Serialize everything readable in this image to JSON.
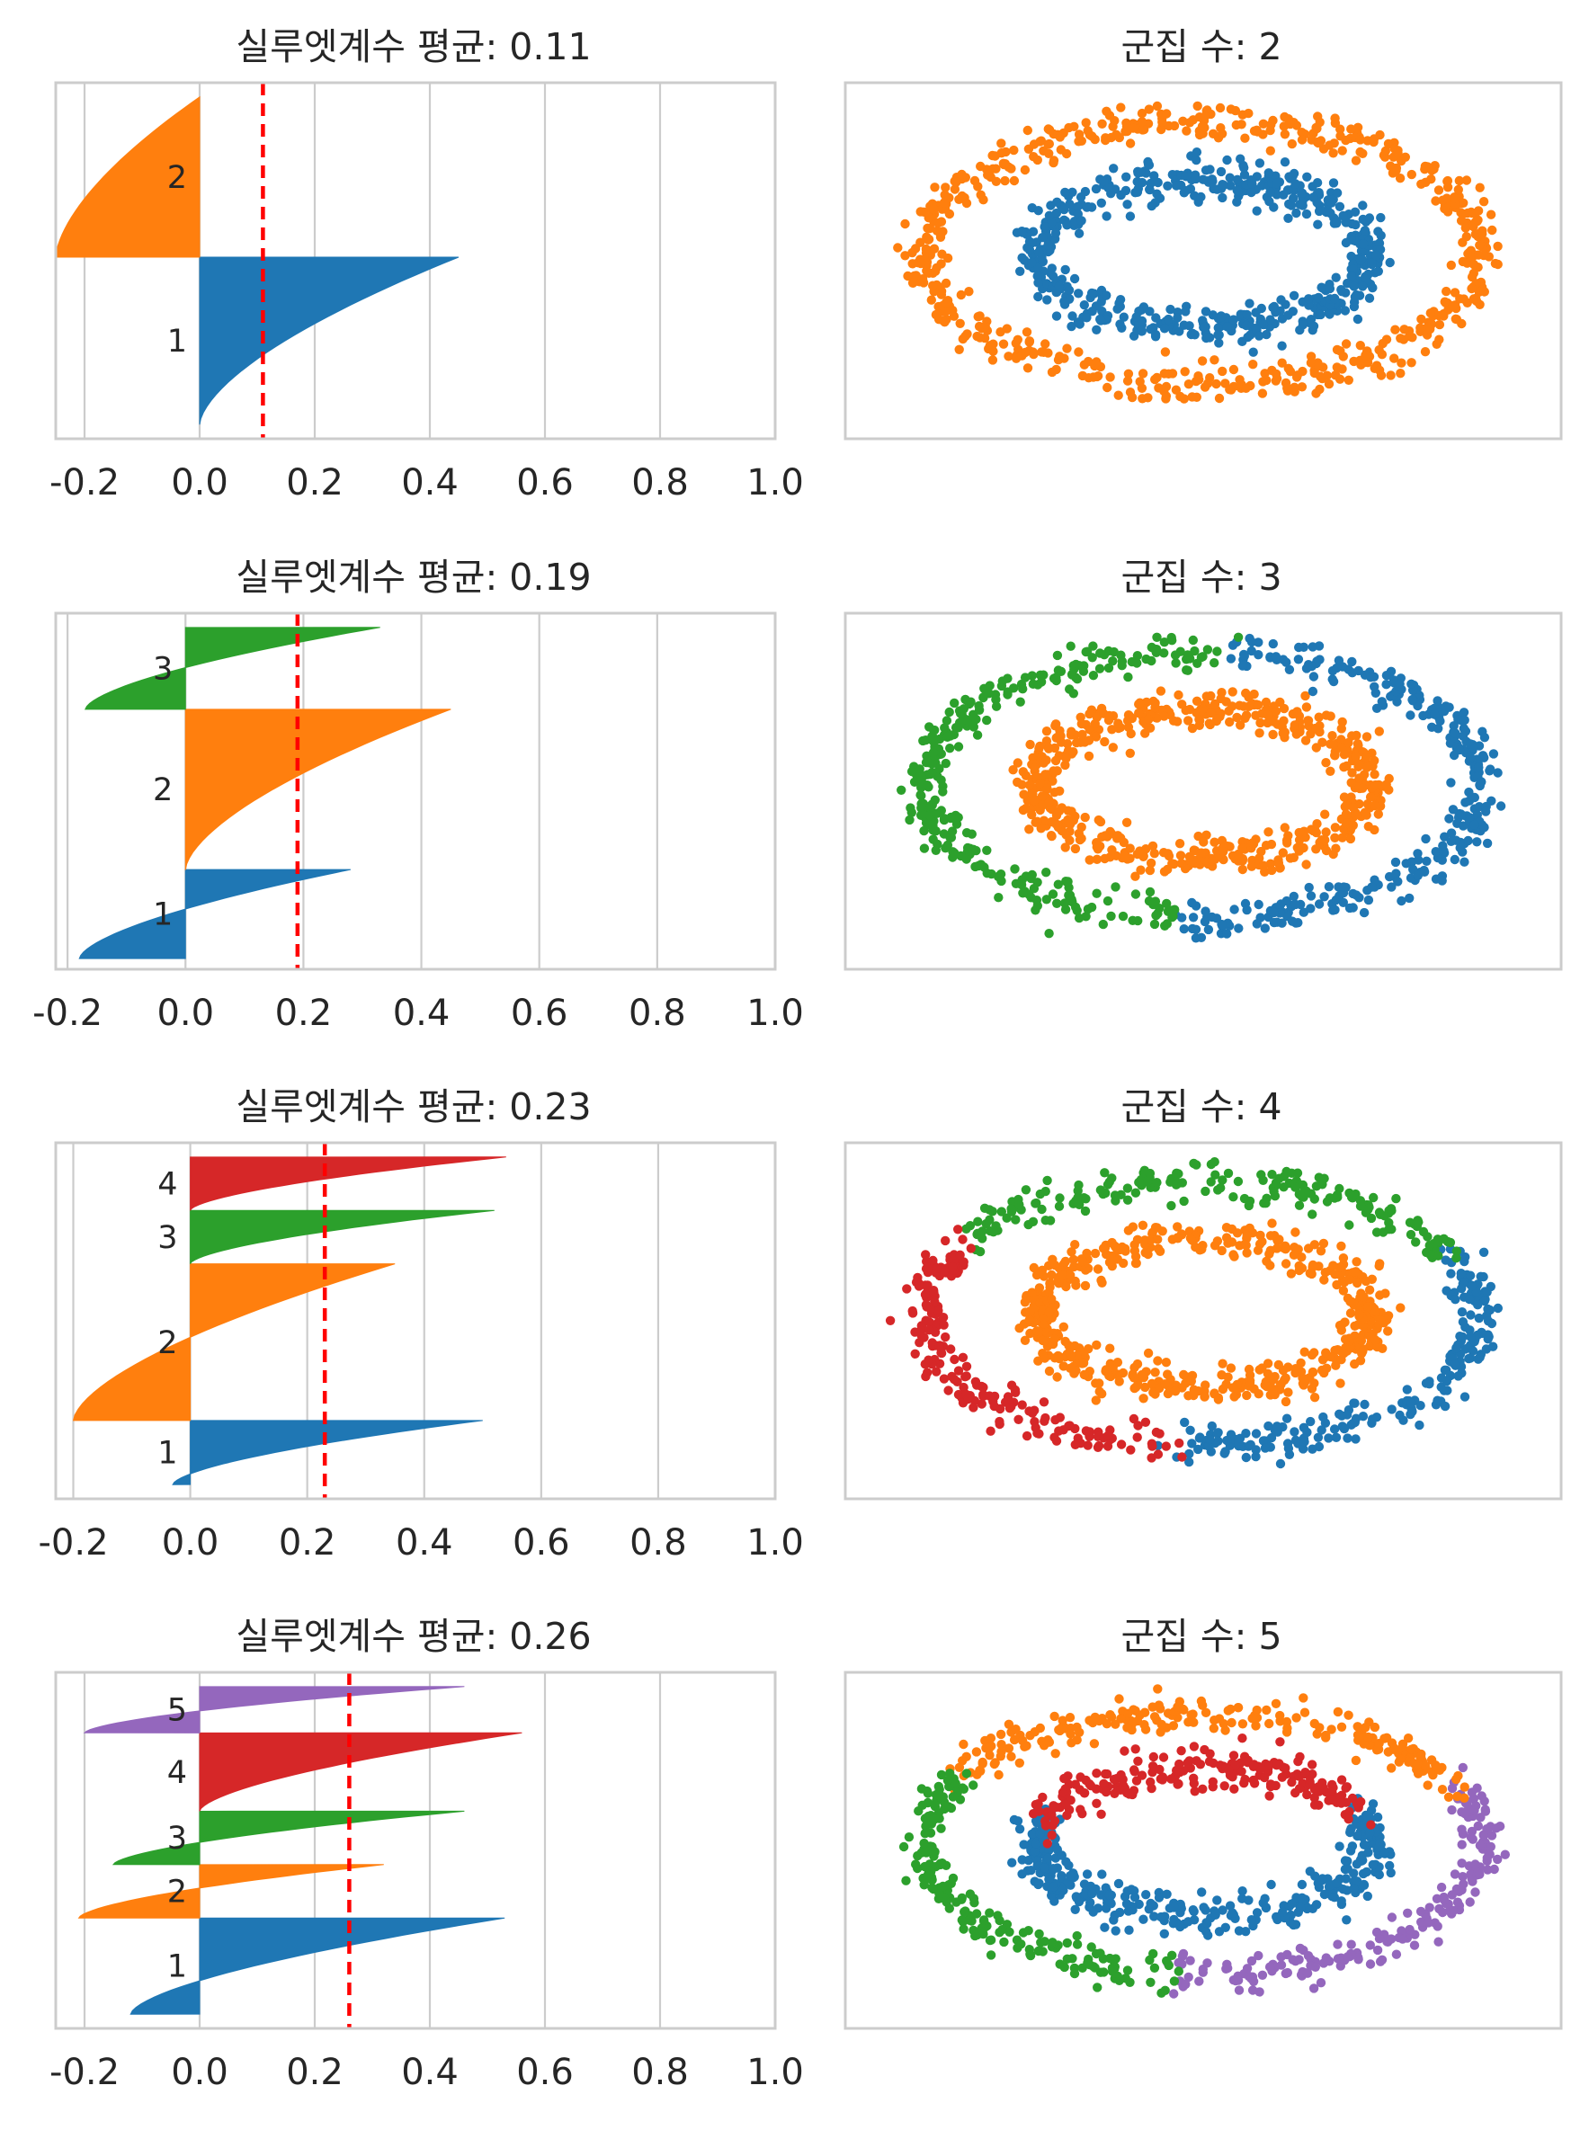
{
  "colors": {
    "c1": "#1f77b4",
    "c2": "#ff7f0e",
    "c3": "#2ca02c",
    "c4": "#d62728",
    "c5": "#9467bd",
    "mean_line": "#ff0000",
    "grid": "#cccccc",
    "frame": "#cccccc"
  },
  "chart_data": [
    {
      "type": "area",
      "panel": "silhouette",
      "title": "실루엣계수 평균:  0.11",
      "mean": 0.11,
      "xlim": [
        -0.25,
        1.0
      ],
      "ylim": [
        0,
        1
      ],
      "xticks": [
        -0.2,
        0.0,
        0.2,
        0.4,
        0.6,
        0.8,
        1.0
      ],
      "xtick_labels": [
        "-0.2",
        "0.0",
        "0.2",
        "0.4",
        "0.6",
        "0.8",
        "1.0"
      ],
      "grid": true,
      "clusters": [
        {
          "label": "1",
          "min": 0.0,
          "max": 0.45,
          "start": 0.04,
          "end": 0.51
        },
        {
          "label": "2",
          "min": -0.25,
          "max": 0.0,
          "start": 0.51,
          "end": 0.96
        }
      ]
    },
    {
      "type": "scatter",
      "panel": "clusters",
      "title": "군집 수: 2",
      "k": 2,
      "points": [
        {
          "cluster": "1",
          "ring": "inner",
          "from": 0,
          "to": 360
        },
        {
          "cluster": "2",
          "ring": "outer",
          "from": 0,
          "to": 360
        }
      ]
    },
    {
      "type": "area",
      "panel": "silhouette",
      "title": "실루엣계수 평균:  0.19",
      "mean": 0.19,
      "xlim": [
        -0.22,
        1.0
      ],
      "ylim": [
        0,
        1
      ],
      "xticks": [
        -0.2,
        0.0,
        0.2,
        0.4,
        0.6,
        0.8,
        1.0
      ],
      "xtick_labels": [
        "-0.2",
        "0.0",
        "0.2",
        "0.4",
        "0.6",
        "0.8",
        "1.0"
      ],
      "grid": true,
      "clusters": [
        {
          "label": "1",
          "min": -0.18,
          "max": 0.28,
          "start": 0.03,
          "end": 0.28
        },
        {
          "label": "2",
          "min": 0.0,
          "max": 0.45,
          "start": 0.28,
          "end": 0.73
        },
        {
          "label": "3",
          "min": -0.17,
          "max": 0.33,
          "start": 0.73,
          "end": 0.96
        }
      ]
    },
    {
      "type": "scatter",
      "panel": "clusters",
      "title": "군집 수: 3",
      "k": 3,
      "points": [
        {
          "cluster": "2",
          "ring": "inner",
          "from": 0,
          "to": 360
        },
        {
          "cluster": "1",
          "ring": "outer",
          "from": -96,
          "to": 86
        },
        {
          "cluster": "3",
          "ring": "outer",
          "from": 86,
          "to": 264
        }
      ]
    },
    {
      "type": "area",
      "panel": "silhouette",
      "title": "실루엣계수 평균:  0.23",
      "mean": 0.23,
      "xlim": [
        -0.23,
        1.0
      ],
      "ylim": [
        0,
        1
      ],
      "xticks": [
        -0.2,
        0.0,
        0.2,
        0.4,
        0.6,
        0.8,
        1.0
      ],
      "xtick_labels": [
        "-0.2",
        "0.0",
        "0.2",
        "0.4",
        "0.6",
        "0.8",
        "1.0"
      ],
      "grid": true,
      "clusters": [
        {
          "label": "1",
          "min": -0.03,
          "max": 0.5,
          "start": 0.04,
          "end": 0.22
        },
        {
          "label": "2",
          "min": -0.2,
          "max": 0.35,
          "start": 0.22,
          "end": 0.66
        },
        {
          "label": "3",
          "min": 0.0,
          "max": 0.52,
          "start": 0.66,
          "end": 0.81
        },
        {
          "label": "4",
          "min": 0.0,
          "max": 0.54,
          "start": 0.81,
          "end": 0.96
        }
      ]
    },
    {
      "type": "scatter",
      "panel": "clusters",
      "title": "군집 수: 4",
      "k": 4,
      "points": [
        {
          "cluster": "2",
          "ring": "inner",
          "from": 0,
          "to": 360
        },
        {
          "cluster": "1",
          "ring": "outer",
          "from": -96,
          "to": 28
        },
        {
          "cluster": "3",
          "ring": "outer",
          "from": 28,
          "to": 148
        },
        {
          "cluster": "4",
          "ring": "outer",
          "from": 148,
          "to": 264
        }
      ]
    },
    {
      "type": "area",
      "panel": "silhouette",
      "title": "실루엣계수 평균:  0.26",
      "mean": 0.26,
      "xlim": [
        -0.25,
        1.0
      ],
      "ylim": [
        0,
        1
      ],
      "xticks": [
        -0.2,
        0.0,
        0.2,
        0.4,
        0.6,
        0.8,
        1.0
      ],
      "xtick_labels": [
        "-0.2",
        "0.0",
        "0.2",
        "0.4",
        "0.6",
        "0.8",
        "1.0"
      ],
      "grid": true,
      "clusters": [
        {
          "label": "1",
          "min": -0.12,
          "max": 0.53,
          "start": 0.04,
          "end": 0.31
        },
        {
          "label": "2",
          "min": -0.21,
          "max": 0.32,
          "start": 0.31,
          "end": 0.46
        },
        {
          "label": "3",
          "min": -0.15,
          "max": 0.46,
          "start": 0.46,
          "end": 0.61
        },
        {
          "label": "4",
          "min": 0.0,
          "max": 0.56,
          "start": 0.61,
          "end": 0.83
        },
        {
          "label": "5",
          "min": -0.2,
          "max": 0.46,
          "start": 0.83,
          "end": 0.96
        }
      ]
    },
    {
      "type": "scatter",
      "panel": "clusters",
      "title": "군집 수: 5",
      "k": 5,
      "points": [
        {
          "cluster": "1",
          "ring": "inner",
          "from": 160,
          "to": 385
        },
        {
          "cluster": "4",
          "ring": "inner",
          "from": 25,
          "to": 160
        },
        {
          "cluster": "5",
          "ring": "outer",
          "from": -96,
          "to": 22
        },
        {
          "cluster": "2",
          "ring": "outer",
          "from": 22,
          "to": 150
        },
        {
          "cluster": "3",
          "ring": "outer",
          "from": 150,
          "to": 264
        }
      ]
    }
  ]
}
